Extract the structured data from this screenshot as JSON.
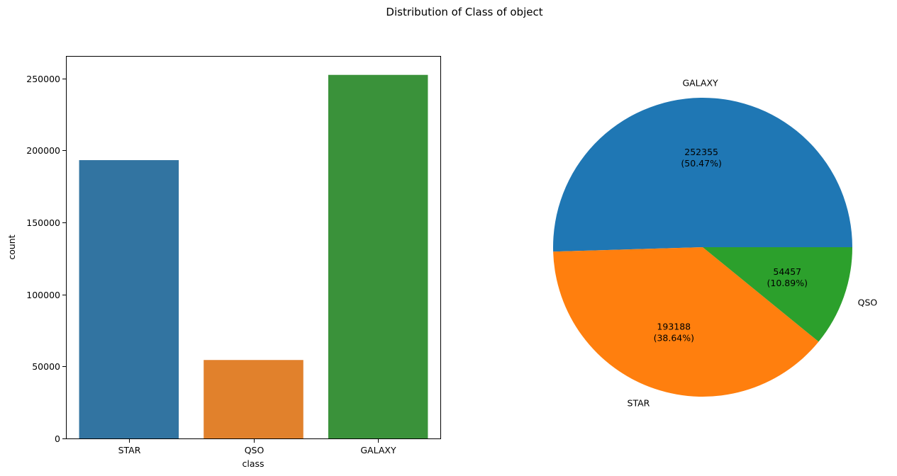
{
  "figure": {
    "title": "Distribution of Class of object"
  },
  "colors": {
    "bar_series": [
      "#3274a1",
      "#e1812c",
      "#3a923a"
    ],
    "pie_series": [
      "#1f77b4",
      "#ff7f0e",
      "#2ca02c"
    ]
  },
  "chart_data": [
    {
      "type": "bar",
      "categories": [
        "STAR",
        "QSO",
        "GALAXY"
      ],
      "values": [
        193188,
        54457,
        252355
      ],
      "xlabel": "class",
      "ylabel": "count",
      "ylim": [
        0,
        265000
      ],
      "yticks": [
        0,
        50000,
        100000,
        150000,
        200000,
        250000
      ],
      "grid": false,
      "legend": "none"
    },
    {
      "type": "pie",
      "labels": [
        "GALAXY",
        "STAR",
        "QSO"
      ],
      "values": [
        252355,
        193188,
        54457
      ],
      "autopct_labels": [
        [
          "252355",
          "(50.47%)"
        ],
        [
          "193188",
          "(38.64%)"
        ],
        [
          "54457",
          "(10.89%)"
        ]
      ],
      "start_angle": 0,
      "direction": "counterclockwise",
      "legend": "none"
    }
  ]
}
